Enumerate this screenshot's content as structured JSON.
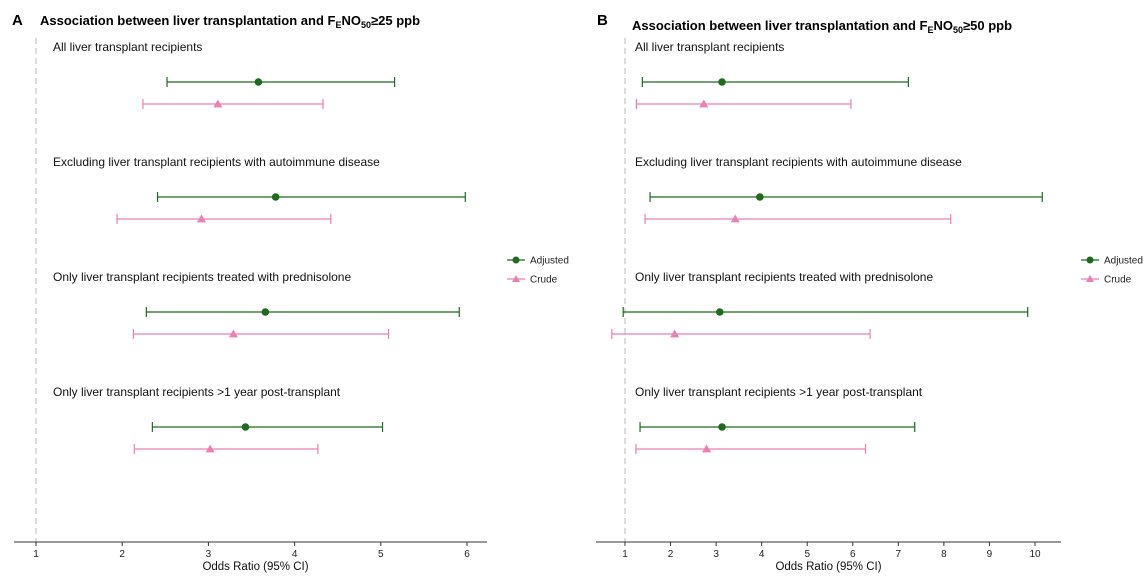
{
  "chart_data": [
    {
      "type": "forest",
      "panel": "A",
      "title_prefix": "Association between liver transplantation and F",
      "title_sub1": "E",
      "title_mid": "NO",
      "title_sub2": "50",
      "title_suffix": "≥25  ppb",
      "xlabel": "Odds Ratio (95% CI)",
      "xlim": [
        0.85,
        6.2
      ],
      "xticks": [
        1,
        2,
        3,
        4,
        5,
        6
      ],
      "reference_line": 1,
      "groups": [
        {
          "label": "All liver transplant recipients",
          "adjusted": {
            "or": 3.58,
            "lower": 2.52,
            "upper": 5.16
          },
          "crude": {
            "or": 3.11,
            "lower": 2.24,
            "upper": 4.33
          }
        },
        {
          "label": "Excluding liver transplant recipients with autoimmune disease",
          "adjusted": {
            "or": 3.78,
            "lower": 2.41,
            "upper": 5.98
          },
          "crude": {
            "or": 2.92,
            "lower": 1.94,
            "upper": 4.42
          }
        },
        {
          "label": "Only liver transplant recipients treated with prednisolone",
          "adjusted": {
            "or": 3.66,
            "lower": 2.28,
            "upper": 5.91
          },
          "crude": {
            "or": 3.29,
            "lower": 2.13,
            "upper": 5.09
          }
        },
        {
          "label": "Only liver transplant recipients >1 year post-transplant",
          "adjusted": {
            "or": 3.43,
            "lower": 2.35,
            "upper": 5.02
          },
          "crude": {
            "or": 3.02,
            "lower": 2.14,
            "upper": 4.27
          }
        }
      ],
      "legend": {
        "position": "right",
        "adjusted": "Adjusted",
        "crude": "Crude"
      }
    },
    {
      "type": "forest",
      "panel": "B",
      "title_prefix": "Association between liver transplantation and F",
      "title_sub1": "E",
      "title_mid": "NO",
      "title_sub2": "50",
      "title_suffix": "≥50 ppb",
      "xlabel": "Odds Ratio (95% CI)",
      "xlim": [
        0.3,
        10.6
      ],
      "xticks": [
        1,
        2,
        3,
        4,
        5,
        6,
        7,
        8,
        9,
        10
      ],
      "reference_line": 1,
      "groups": [
        {
          "label": "All liver transplant recipients",
          "adjusted": {
            "or": 3.13,
            "lower": 1.38,
            "upper": 7.22
          },
          "crude": {
            "or": 2.73,
            "lower": 1.25,
            "upper": 5.96
          }
        },
        {
          "label": "Excluding liver transplant recipients with autoimmune disease",
          "adjusted": {
            "or": 3.96,
            "lower": 1.55,
            "upper": 10.16
          },
          "crude": {
            "or": 3.42,
            "lower": 1.44,
            "upper": 8.15
          }
        },
        {
          "label": "Only liver transplant recipients treated with prednisolone",
          "adjusted": {
            "or": 3.08,
            "lower": 0.96,
            "upper": 9.84
          },
          "crude": {
            "or": 2.09,
            "lower": 0.71,
            "upper": 6.38
          }
        },
        {
          "label": "Only liver transplant recipients >1 year post-transplant",
          "adjusted": {
            "or": 3.13,
            "lower": 1.33,
            "upper": 7.36
          },
          "crude": {
            "or": 2.79,
            "lower": 1.24,
            "upper": 6.28
          }
        }
      ],
      "legend": {
        "position": "right",
        "adjusted": "Adjusted",
        "crude": "Crude"
      }
    }
  ],
  "colors": {
    "adjusted": "#1e6b1e",
    "crude": "#ec7fb3",
    "reference": "#c8c8c8",
    "axis": "#333333"
  }
}
